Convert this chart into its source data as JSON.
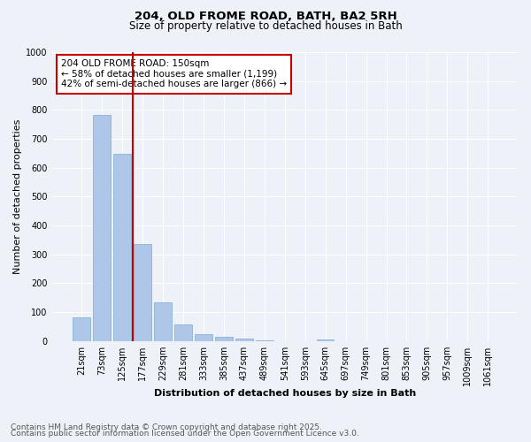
{
  "title1": "204, OLD FROME ROAD, BATH, BA2 5RH",
  "title2": "Size of property relative to detached houses in Bath",
  "xlabel": "Distribution of detached houses by size in Bath",
  "ylabel": "Number of detached properties",
  "categories": [
    "21sqm",
    "73sqm",
    "125sqm",
    "177sqm",
    "229sqm",
    "281sqm",
    "333sqm",
    "385sqm",
    "437sqm",
    "489sqm",
    "541sqm",
    "593sqm",
    "645sqm",
    "697sqm",
    "749sqm",
    "801sqm",
    "853sqm",
    "905sqm",
    "957sqm",
    "1009sqm",
    "1061sqm"
  ],
  "values": [
    82,
    782,
    648,
    335,
    135,
    57,
    25,
    14,
    8,
    3,
    0,
    0,
    5,
    0,
    0,
    0,
    0,
    0,
    0,
    0,
    0
  ],
  "bar_color": "#aec6e8",
  "bar_edge_color": "#7aaed0",
  "vline_color": "#cc0000",
  "annotation_text": "204 OLD FROME ROAD: 150sqm\n← 58% of detached houses are smaller (1,199)\n42% of semi-detached houses are larger (866) →",
  "annotation_box_color": "#ffffff",
  "annotation_box_edge": "#cc0000",
  "ylim": [
    0,
    1000
  ],
  "yticks": [
    0,
    100,
    200,
    300,
    400,
    500,
    600,
    700,
    800,
    900,
    1000
  ],
  "footer1": "Contains HM Land Registry data © Crown copyright and database right 2025.",
  "footer2": "Contains public sector information licensed under the Open Government Licence v3.0.",
  "bg_color": "#eef2f8",
  "grid_color": "#ffffff",
  "title1_fontsize": 9.5,
  "title2_fontsize": 8.5,
  "axis_label_fontsize": 8,
  "tick_fontsize": 7,
  "annotation_fontsize": 7.5,
  "footer_fontsize": 6.5
}
